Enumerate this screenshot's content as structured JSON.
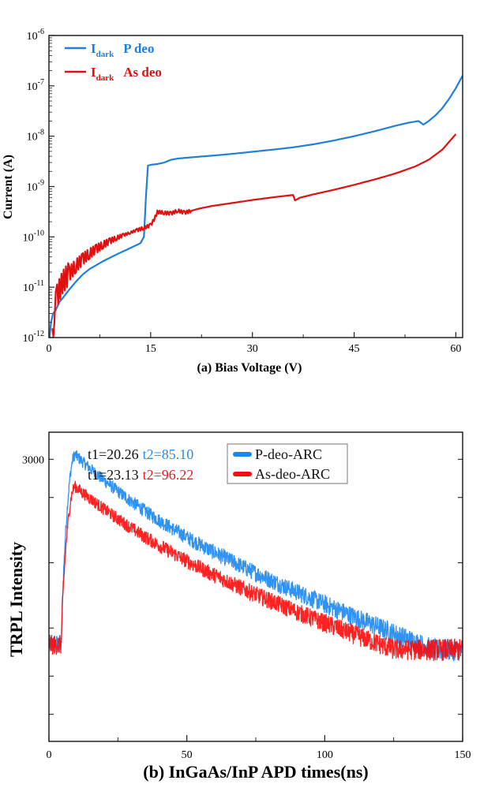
{
  "chart_data": [
    {
      "id": "a",
      "type": "line",
      "xlabel": "(a) Bias Voltage (V)",
      "ylabel": "Current (A)",
      "xlim": [
        0,
        61
      ],
      "ylim": [
        1e-12,
        1e-06
      ],
      "yscale": "log",
      "xticks": [
        0,
        15,
        30,
        45,
        60
      ],
      "xtick_labels": [
        "0",
        "15",
        "30",
        "45",
        "60"
      ],
      "yticks": [
        1e-12,
        1e-11,
        1e-10,
        1e-09,
        1e-08,
        1e-07,
        1e-06
      ],
      "ytick_labels": [
        {
          "base": "10",
          "exp": "-12"
        },
        {
          "base": "10",
          "exp": "-11"
        },
        {
          "base": "10",
          "exp": "-10"
        },
        {
          "base": "10",
          "exp": "-9"
        },
        {
          "base": "10",
          "exp": "-8"
        },
        {
          "base": "10",
          "exp": "-7"
        },
        {
          "base": "10",
          "exp": "-6"
        }
      ],
      "legend_position": "top-left",
      "grid": false,
      "series": [
        {
          "name": "I_dark P deo",
          "label_main": "I",
          "label_sub": "dark",
          "label_tail": "P deo",
          "color": "#1f7fdb",
          "x": [
            0.1,
            0.3,
            0.6,
            1.0,
            1.5,
            2,
            3,
            4,
            5,
            6,
            8,
            10,
            12,
            13.5,
            14.0,
            14.3,
            14.6,
            15,
            16,
            17,
            18,
            19,
            20,
            22,
            25,
            28,
            30,
            33,
            36,
            39,
            42,
            45,
            48,
            51,
            53,
            54.5,
            55.2,
            56,
            57,
            58,
            59,
            60,
            61
          ],
          "y": [
            1e-12,
            2e-12,
            3e-12,
            3.5e-12,
            5e-12,
            6e-12,
            9e-12,
            1.3e-11,
            1.8e-11,
            2.3e-11,
            3.3e-11,
            4.5e-11,
            6e-11,
            7.5e-11,
            1e-10,
            6e-10,
            2.6e-09,
            2.7e-09,
            2.8e-09,
            3e-09,
            3.4e-09,
            3.6e-09,
            3.7e-09,
            3.9e-09,
            4.2e-09,
            4.6e-09,
            4.9e-09,
            5.4e-09,
            6e-09,
            6.9e-09,
            8.2e-09,
            1e-08,
            1.25e-08,
            1.6e-08,
            1.85e-08,
            2e-08,
            1.7e-08,
            2e-08,
            2.6e-08,
            3.6e-08,
            5.5e-08,
            9e-08,
            1.6e-07
          ]
        },
        {
          "name": "I_dark As deo",
          "label_main": "I",
          "label_sub": "dark",
          "label_tail": "As deo",
          "color": "#e01010",
          "x": [
            0.5,
            0.8,
            1.2,
            2,
            3,
            4,
            5,
            6,
            7,
            8,
            9,
            10,
            11,
            12,
            13,
            14,
            15,
            15.5,
            16,
            17,
            18,
            19,
            20,
            21,
            22,
            24,
            27,
            30,
            33,
            36.0,
            36.3,
            37,
            39,
            42,
            45,
            48,
            51,
            54,
            56,
            58,
            60
          ],
          "y": [
            8e-13,
            3e-12,
            6e-12,
            1.1e-11,
            1.7e-11,
            2.5e-11,
            3.4e-11,
            4.4e-11,
            5.5e-11,
            6.7e-11,
            8e-11,
            9.3e-11,
            1.07e-10,
            1.2e-10,
            1.35e-10,
            1.5e-10,
            1.7e-10,
            2.2e-10,
            3.1e-10,
            3e-10,
            2.9e-10,
            3.3e-10,
            3e-10,
            3.3e-10,
            3.6e-10,
            4.1e-10,
            4.7e-10,
            5.4e-10,
            6.1e-10,
            6.8e-10,
            5.3e-10,
            6e-10,
            7e-10,
            8.6e-10,
            1.08e-09,
            1.38e-09,
            1.8e-09,
            2.5e-09,
            3.4e-09,
            5.4e-09,
            1.1e-08
          ]
        }
      ]
    },
    {
      "id": "b",
      "type": "line",
      "xlabel": "(b) InGaAs/InP APD  times(ns)",
      "ylabel": "TRPL Intensity",
      "xlim": [
        0,
        150
      ],
      "ylim": [
        150,
        4000
      ],
      "yscale": "log",
      "xticks": [
        0,
        50,
        100,
        150
      ],
      "xtick_labels": [
        "0",
        "50",
        "100",
        "150"
      ],
      "ytick_labels_shown": [
        {
          "value": 3000,
          "label": "3000"
        }
      ],
      "legend_position": "top-center",
      "grid": false,
      "annotations": [
        {
          "t1": "t1=20.26",
          "t2": "t2=85.10",
          "t2_color": "#2a8ee0"
        },
        {
          "t1": "t1=23.13",
          "t2": "t2=96.22",
          "t2_color": "#e02020"
        }
      ],
      "series": [
        {
          "name": "P-deo-ARC",
          "color": "#1a86f0",
          "baseline": 420,
          "rise_start": 4.5,
          "peak_time": 9.5,
          "peak": 3150,
          "t1": 20.26,
          "t2": 85.1,
          "noise": 0.06
        },
        {
          "name": "As-deo-ARC",
          "color": "#ff0a0a",
          "baseline": 420,
          "rise_start": 4.5,
          "peak_time": 9.5,
          "peak": 2250,
          "t1": 23.13,
          "t2": 96.22,
          "noise": 0.06
        }
      ]
    }
  ]
}
